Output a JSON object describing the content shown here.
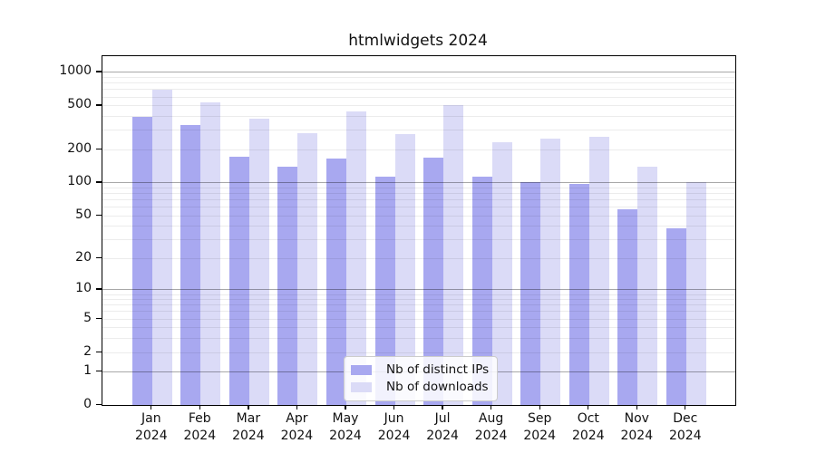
{
  "title": "htmlwidgets 2024",
  "colors": {
    "ips": "#a8a8f0",
    "downloads": "#dbdbf7",
    "axis": "#000000",
    "grid_major": "#a9a9a9",
    "grid_minor": "#ececec",
    "background": "#ffffff"
  },
  "legend": {
    "items": [
      {
        "label": "Nb of distinct IPs",
        "color_key": "ips"
      },
      {
        "label": "Nb of downloads",
        "color_key": "downloads"
      }
    ]
  },
  "chart_data": {
    "type": "bar",
    "title": "htmlwidgets 2024",
    "xlabel": "",
    "ylabel": "",
    "yscale": "log1p",
    "grid": true,
    "legend_position": "bottom-center",
    "categories": [
      "Jan 2024",
      "Feb 2024",
      "Mar 2024",
      "Apr 2024",
      "May 2024",
      "Jun 2024",
      "Jul 2024",
      "Aug 2024",
      "Sep 2024",
      "Oct 2024",
      "Nov 2024",
      "Dec 2024"
    ],
    "series": [
      {
        "name": "Nb of distinct IPs",
        "values": [
          390,
          329,
          172,
          139,
          166,
          114,
          167,
          114,
          100,
          97,
          57,
          38
        ]
      },
      {
        "name": "Nb of downloads",
        "values": [
          686,
          533,
          376,
          280,
          443,
          275,
          500,
          233,
          250,
          260,
          140,
          100
        ]
      }
    ],
    "y_ticks": [
      1000,
      500,
      200,
      100,
      50,
      20,
      10,
      5,
      2,
      1,
      0
    ],
    "ylim": [
      0,
      1385
    ]
  }
}
